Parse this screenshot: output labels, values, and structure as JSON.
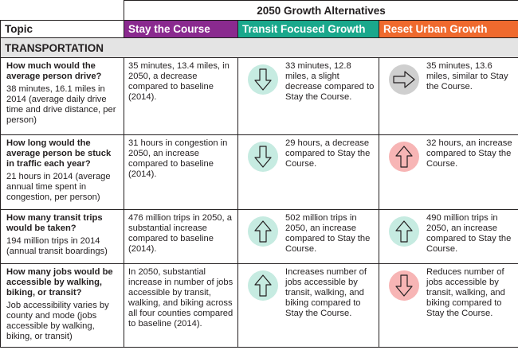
{
  "title": "2050 Growth Alternatives",
  "headers": {
    "topic": "Topic",
    "stay": "Stay the Course",
    "transit": "Transit Focused Growth",
    "reset": "Reset Urban Growth"
  },
  "colors": {
    "stay": "#8a2a8f",
    "transit": "#1aa88c",
    "reset": "#ef6a2e",
    "section_bg": "#e4e4e4",
    "circle_teal": "#c6ebe1",
    "circle_gray": "#cfcfcf",
    "circle_pink": "#f7b5b5"
  },
  "section": "TRANSPORTATION",
  "rows": [
    {
      "question": "How much would the average person drive?",
      "detail": "38 minutes, 16.1 miles in 2014 (average daily drive time and drive distance, per person)",
      "stay": "35 minutes, 13.4 miles, in 2050, a decrease compared to baseline (2014).",
      "transit": {
        "icon": "arrow-down-icon",
        "text": "33 minutes, 12.8 miles, a slight decrease compared to Stay the Course."
      },
      "reset": {
        "icon": "arrow-right-icon",
        "text": "35 minutes, 13.6 miles, similar to Stay the Course."
      }
    },
    {
      "question": "How long would the average person be stuck in traffic each year?",
      "detail": "21 hours in 2014 (average annual time spent in congestion, per person)",
      "stay": "31 hours in congestion in 2050, an increase compared to baseline (2014).",
      "transit": {
        "icon": "arrow-down-icon",
        "text": "29 hours, a decrease compared to Stay the Course."
      },
      "reset": {
        "icon": "arrow-up-icon",
        "text": "32 hours, an increase compared to Stay the Course."
      }
    },
    {
      "question": "How many transit trips would be taken?",
      "detail": "194 million trips in 2014 (annual transit boardings)",
      "stay": "476 million trips in 2050, a substantial increase compared to baseline (2014).",
      "transit": {
        "icon": "arrow-up-icon",
        "text": "502 million trips in 2050, an increase compared to Stay the Course."
      },
      "reset": {
        "icon": "arrow-up-icon",
        "text": "490 million trips in 2050, an increase compared to Stay the Course."
      }
    },
    {
      "question": "How many jobs would be accessible by walking, biking, or transit?",
      "detail": "Job accessibility varies by county and mode (jobs accessible by walking, biking, or transit)",
      "stay": "In 2050, substantial increase in number of jobs accessible by transit, walking, and biking across all four counties compared to baseline (2014).",
      "transit": {
        "icon": "arrow-up-icon",
        "text": "Increases number of jobs accessible by transit, walking, and biking compared to Stay the Course."
      },
      "reset": {
        "icon": "arrow-down-icon",
        "text": "Reduces number of jobs accessible by transit, walking, and biking compared to Stay the Course."
      }
    }
  ]
}
